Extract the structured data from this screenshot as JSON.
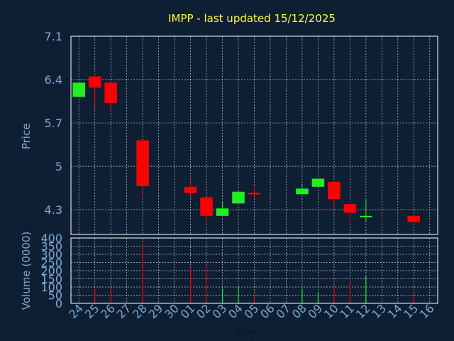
{
  "chart_data": [
    {
      "type": "candlestick",
      "title": "IMPP - last updated 15/12/2025",
      "ylabel": "Price",
      "ylim": [
        3.9,
        7.1
      ],
      "yticks": [
        "7.1",
        "6.4",
        "5.7",
        "5",
        "4.3"
      ],
      "ytick_values": [
        7.1,
        6.4,
        5.7,
        5.0,
        4.3
      ],
      "grid": true,
      "candles": [
        {
          "day": "24",
          "open": 6.12,
          "high": 6.35,
          "low": 6.12,
          "close": 6.35,
          "dir": "up"
        },
        {
          "day": "25",
          "open": 6.45,
          "high": 6.5,
          "low": 5.95,
          "close": 6.27,
          "dir": "down"
        },
        {
          "day": "26",
          "open": 6.35,
          "high": 6.35,
          "low": 5.88,
          "close": 6.02,
          "dir": "down"
        },
        {
          "day": "28",
          "open": 5.42,
          "high": 5.42,
          "low": 4.5,
          "close": 4.68,
          "dir": "down"
        },
        {
          "day": "01",
          "open": 4.67,
          "high": 4.8,
          "low": 4.48,
          "close": 4.57,
          "dir": "down"
        },
        {
          "day": "02",
          "open": 4.5,
          "high": 4.5,
          "low": 4.08,
          "close": 4.2,
          "dir": "down"
        },
        {
          "day": "03",
          "open": 4.2,
          "high": 4.42,
          "low": 4.2,
          "close": 4.32,
          "dir": "up"
        },
        {
          "day": "04",
          "open": 4.4,
          "high": 4.6,
          "low": 4.4,
          "close": 4.59,
          "dir": "up"
        },
        {
          "day": "05",
          "open": 4.57,
          "high": 4.68,
          "low": 4.52,
          "close": 4.55,
          "dir": "down"
        },
        {
          "day": "08",
          "open": 4.55,
          "high": 4.7,
          "low": 4.55,
          "close": 4.64,
          "dir": "up"
        },
        {
          "day": "09",
          "open": 4.67,
          "high": 4.8,
          "low": 4.67,
          "close": 4.8,
          "dir": "up"
        },
        {
          "day": "10",
          "open": 4.75,
          "high": 4.75,
          "low": 4.3,
          "close": 4.47,
          "dir": "down"
        },
        {
          "day": "11",
          "open": 4.39,
          "high": 4.39,
          "low": 4.1,
          "close": 4.25,
          "dir": "down"
        },
        {
          "day": "12",
          "open": 4.2,
          "high": 4.47,
          "low": 4.1,
          "close": 4.2,
          "dir": "up"
        },
        {
          "day": "15",
          "open": 4.2,
          "high": 4.2,
          "low": 4.07,
          "close": 4.1,
          "dir": "down"
        }
      ]
    },
    {
      "type": "bar",
      "ylabel": "Volume (0000)",
      "xlabel": "Day",
      "ylim": [
        0,
        400
      ],
      "yticks": [
        "400",
        "350",
        "300",
        "250",
        "200",
        "150",
        "100",
        "50",
        "0"
      ],
      "ytick_values": [
        400,
        350,
        300,
        250,
        200,
        150,
        100,
        50,
        0
      ],
      "categories": [
        "24",
        "25",
        "26",
        "27",
        "28",
        "29",
        "30",
        "01",
        "02",
        "03",
        "04",
        "05",
        "06",
        "07",
        "08",
        "09",
        "10",
        "11",
        "12",
        "13",
        "14",
        "15",
        "16"
      ],
      "values": [
        0,
        90,
        95,
        0,
        370,
        0,
        0,
        220,
        235,
        90,
        100,
        50,
        0,
        0,
        90,
        70,
        110,
        140,
        165,
        0,
        0,
        65,
        0
      ],
      "dirs": [
        "up",
        "down",
        "down",
        "none",
        "down",
        "none",
        "none",
        "down",
        "down",
        "up",
        "up",
        "down",
        "none",
        "none",
        "up",
        "up",
        "down",
        "down",
        "up",
        "none",
        "none",
        "down",
        "none"
      ]
    }
  ],
  "colors": {
    "background": "#0f1f33",
    "axis_text": "#7fa8cf",
    "title": "#ffff33",
    "up": "#22ee22",
    "down": "#ff0000",
    "grid": "#ffffff",
    "axis": "#ffffff"
  }
}
